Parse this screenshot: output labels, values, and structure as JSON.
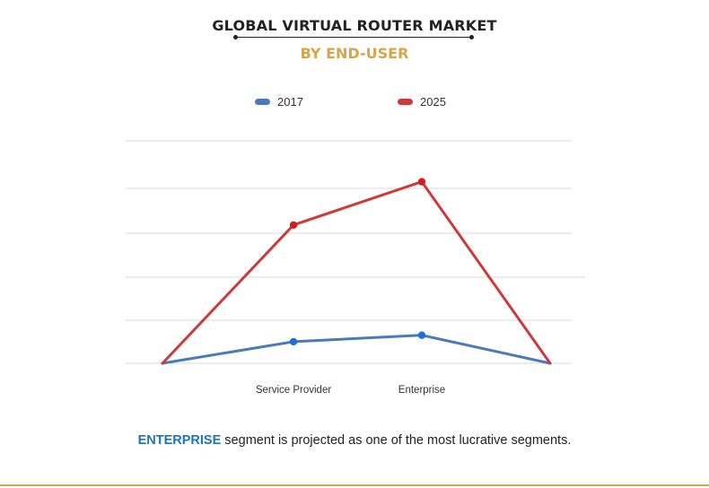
{
  "title": "GLOBAL VIRTUAL ROUTER MARKET",
  "subtitle": "BY END-USER",
  "footer": {
    "highlight": "ENTERPRISE",
    "text": " segment is projected as one of the most lucrative segments."
  },
  "colors": {
    "title": "#222222",
    "subtitle": "#d4a54a",
    "highlight": "#1e73be",
    "grid": "#d9d9d9",
    "rule": "#d4a54a"
  },
  "chart_data": {
    "type": "line",
    "x": [
      "",
      "Service Provider",
      "Enterprise",
      ""
    ],
    "series": [
      {
        "name": "2017",
        "color": "#4a7ab8",
        "values": [
          0,
          1,
          1.3,
          0
        ]
      },
      {
        "name": "2025",
        "color": "#cc3a3a",
        "values": [
          0,
          6.4,
          8.4,
          0
        ]
      }
    ],
    "ylim": [
      0,
      10.5
    ],
    "grid": true,
    "legend": "top-center",
    "title": "GLOBAL VIRTUAL ROUTER MARKET",
    "subtitle": "BY END-USER"
  }
}
